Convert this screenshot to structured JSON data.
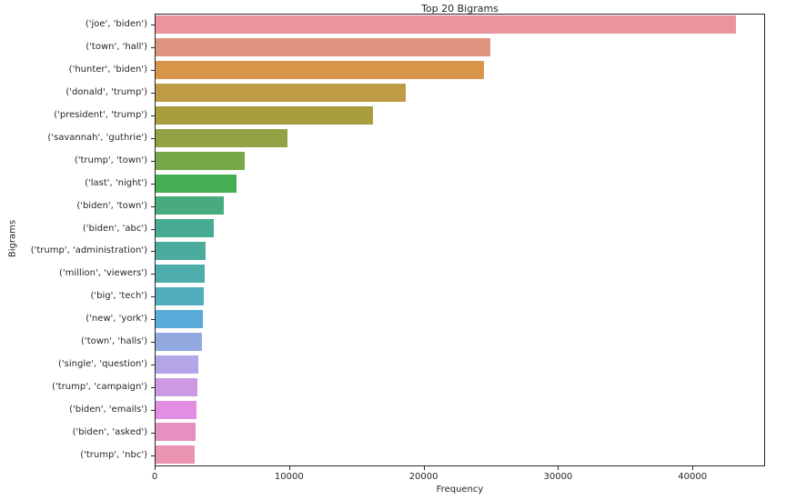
{
  "figure": {
    "title": "Top 20 Bigrams",
    "xlabel": "Frequency",
    "ylabel": "Bigrams"
  },
  "colors": {
    "background": "#ffffff",
    "spine": "#262626",
    "text": "#262626"
  },
  "chart_data": {
    "type": "bar",
    "orientation": "horizontal",
    "title": "Top 20 Bigrams",
    "xlabel": "Frequency",
    "ylabel": "Bigrams",
    "xlim": [
      0,
      45400
    ],
    "xticks": [
      0,
      10000,
      20000,
      30000,
      40000
    ],
    "xtick_labels": [
      "0",
      "10000",
      "20000",
      "30000",
      "40000"
    ],
    "grid": false,
    "legend": null,
    "categories": [
      "('joe', 'biden')",
      "('town', 'hall')",
      "('hunter', 'biden')",
      "('donald', 'trump')",
      "('president', 'trump')",
      "('savannah', 'guthrie')",
      "('trump', 'town')",
      "('last', 'night')",
      "('biden', 'town')",
      "('biden', 'abc')",
      "('trump', 'administration')",
      "('million', 'viewers')",
      "('big', 'tech')",
      "('new', 'york')",
      "('town', 'halls')",
      "('single', 'question')",
      "('trump', 'campaign')",
      "('biden', 'emails')",
      "('biden', 'asked')",
      "('trump', 'nbc')"
    ],
    "values": [
      43200,
      24900,
      24400,
      18600,
      16200,
      9800,
      6600,
      6000,
      5100,
      4300,
      3700,
      3680,
      3600,
      3500,
      3430,
      3150,
      3100,
      3050,
      3000,
      2900
    ],
    "bar_colors": [
      "#e9949f",
      "#e0937f",
      "#d8954a",
      "#bf9b45",
      "#a99e3d",
      "#92a244",
      "#76aa48",
      "#44af53",
      "#48ab80",
      "#47ab94",
      "#4bac9e",
      "#4eadaa",
      "#52aebc",
      "#58abd8",
      "#93aae1",
      "#b4a4e8",
      "#cc99e2",
      "#e28ee1",
      "#e78fc0",
      "#ea93b2"
    ]
  }
}
